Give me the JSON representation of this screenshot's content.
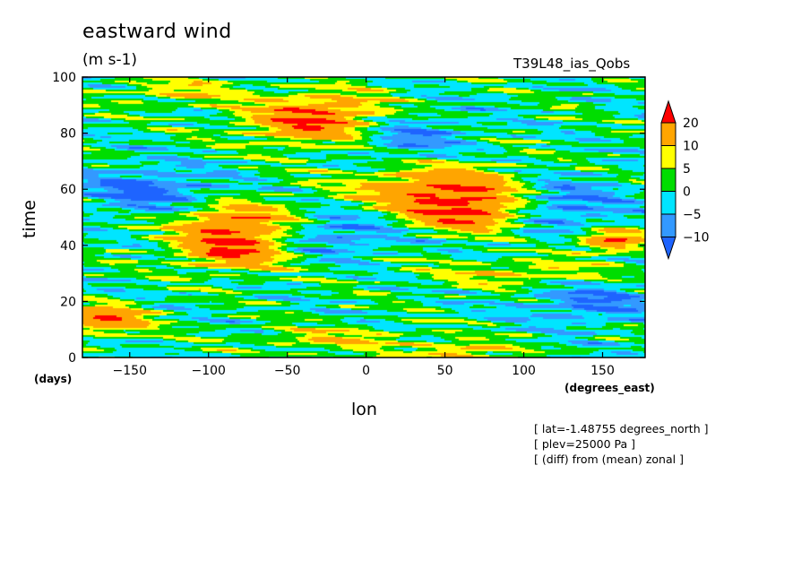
{
  "chart_data": {
    "type": "heatmap",
    "title": "eastward wind",
    "units": "(m s-1)",
    "run_label": "T39L48_ias_Qobs",
    "xlabel": "lon",
    "xunits": "(degrees_east)",
    "ylabel": "time",
    "yunits": "(days)",
    "xlim": [
      -180,
      177
    ],
    "ylim": [
      0,
      100
    ],
    "xticks": [
      -150,
      -100,
      -50,
      0,
      50,
      100,
      150
    ],
    "yticks": [
      0,
      20,
      40,
      60,
      80,
      100
    ],
    "xtick_labels": [
      "-150",
      "-100",
      "-50",
      "0",
      "50",
      "100",
      "150"
    ],
    "ytick_labels": [
      "0",
      "20",
      "40",
      "60",
      "80",
      "100"
    ],
    "colorbar": {
      "levels": [
        -10,
        -5,
        0,
        5,
        10,
        20
      ],
      "labels": [
        "20",
        "10",
        "5",
        "0",
        "-5",
        "-10"
      ],
      "colors": [
        "#1e64ff",
        "#3399ff",
        "#00e5ff",
        "#00dd00",
        "#ffff00",
        "#ffa500",
        "#ff0000"
      ],
      "extend": "both"
    },
    "features": [
      {
        "lon": -30,
        "time": 85,
        "peak": 22,
        "width_lon": 45,
        "width_time": 9
      },
      {
        "lon": 50,
        "time": 60,
        "peak": 21,
        "width_lon": 55,
        "width_time": 8
      },
      {
        "lon": 65,
        "time": 51,
        "peak": 18,
        "width_lon": 40,
        "width_time": 6
      },
      {
        "lon": -85,
        "time": 40,
        "peak": 22,
        "width_lon": 35,
        "width_time": 8
      },
      {
        "lon": -80,
        "time": 50,
        "peak": 14,
        "width_lon": 40,
        "width_time": 6
      },
      {
        "lon": 155,
        "time": 42,
        "peak": 20,
        "width_lon": 22,
        "width_time": 4
      },
      {
        "lon": -165,
        "time": 14,
        "peak": 20,
        "width_lon": 25,
        "width_time": 5
      },
      {
        "lon": 60,
        "time": 2,
        "peak": 12,
        "width_lon": 30,
        "width_time": 4
      },
      {
        "lon": -20,
        "time": 7,
        "peak": 9,
        "width_lon": 50,
        "width_time": 4
      },
      {
        "lon": -120,
        "time": 95,
        "peak": 8,
        "width_lon": 40,
        "width_time": 5
      },
      {
        "lon": 100,
        "time": 30,
        "peak": 9,
        "width_lon": 60,
        "width_time": 5
      },
      {
        "lon": -140,
        "time": 60,
        "peak": -12,
        "width_lon": 40,
        "width_time": 8
      },
      {
        "lon": 120,
        "time": 55,
        "peak": -12,
        "width_lon": 40,
        "width_time": 10
      },
      {
        "lon": -20,
        "time": 45,
        "peak": -10,
        "width_lon": 40,
        "width_time": 8
      },
      {
        "lon": 20,
        "time": 80,
        "peak": -11,
        "width_lon": 40,
        "width_time": 8
      },
      {
        "lon": 140,
        "time": 20,
        "peak": -10,
        "width_lon": 40,
        "width_time": 8
      }
    ]
  },
  "notes": [
    "[ lat=-1.48755 degrees_north ]",
    "[ plev=25000 Pa ]",
    "[ (diff) from (mean) zonal ]"
  ]
}
